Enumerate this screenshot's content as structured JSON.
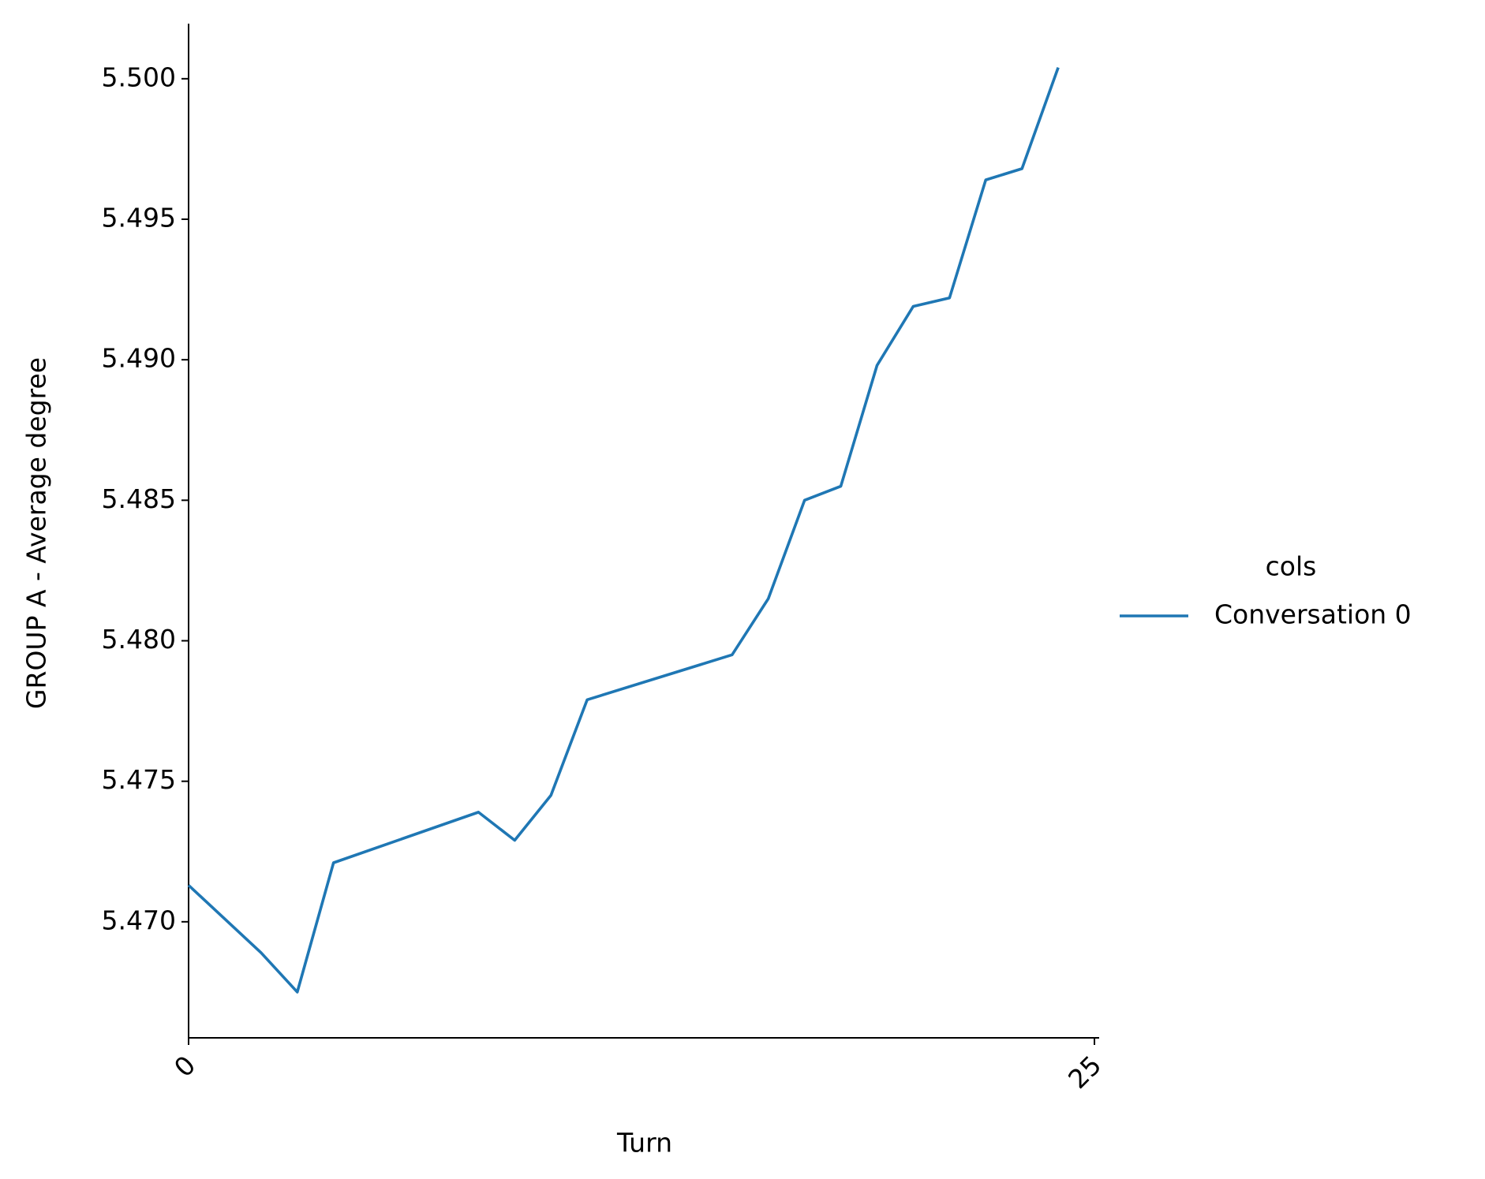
{
  "chart_data": {
    "type": "line",
    "x_label": "Turn",
    "y_label": "GROUP A - Average degree",
    "x": [
      0,
      2,
      3,
      4,
      8,
      9,
      10,
      11,
      15,
      16,
      17,
      18,
      19,
      20,
      21,
      22,
      23,
      24
    ],
    "series": [
      {
        "name": "Conversation 0",
        "color": "#1f77b4",
        "values": [
          5.4713,
          5.4689,
          5.4675,
          5.4721,
          5.4739,
          5.4729,
          5.4745,
          5.4779,
          5.4795,
          5.4815,
          5.485,
          5.4855,
          5.4898,
          5.4919,
          5.4922,
          5.4964,
          5.4968,
          5.5004
        ]
      }
    ],
    "legend_title": "cols",
    "legend_position": "right",
    "xlim": [
      0,
      25.13
    ],
    "xticks": [
      0,
      25
    ],
    "ylim": [
      5.46587,
      5.50196
    ],
    "yticks": [
      {
        "value": 5.47,
        "label": "5.470"
      },
      5.475,
      {
        "value": 5.48,
        "label": "5.480"
      },
      5.485,
      {
        "value": 5.49,
        "label": "5.490"
      },
      5.495,
      {
        "value": 5.5,
        "label": "5.500"
      }
    ]
  }
}
